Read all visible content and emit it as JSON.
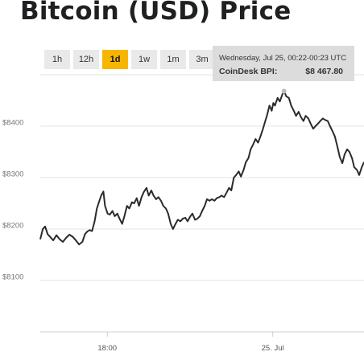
{
  "page": {
    "title": "Bitcoin (USD) Price"
  },
  "range_tabs": [
    {
      "label": "1h",
      "active": false
    },
    {
      "label": "12h",
      "active": false
    },
    {
      "label": "1d",
      "active": true
    },
    {
      "label": "1w",
      "active": false
    },
    {
      "label": "1m",
      "active": false
    },
    {
      "label": "3m",
      "active": false
    }
  ],
  "tooltip": {
    "date": "Wednesday, Jul 25, 00:22-00:23 UTC",
    "label": "CoinDesk BPI:",
    "value": "$8 467.80"
  },
  "colors": {
    "accent": "#f7b500",
    "line": "#2b2b2b",
    "grid": "#e3e3e3",
    "tab_bg": "#e9e9e9"
  },
  "chart_data": {
    "type": "line",
    "ylabel": "",
    "xlabel": "",
    "ylim": [
      8000,
      8500
    ],
    "x_range": [
      0,
      100
    ],
    "y_ticks": [
      {
        "value": 8100,
        "label": "$8100"
      },
      {
        "value": 8200,
        "label": "$8200"
      },
      {
        "value": 8300,
        "label": "$8300"
      },
      {
        "value": 8400,
        "label": "$8400"
      }
    ],
    "x_ticks": [
      {
        "x": 20.7,
        "label": "18:00"
      },
      {
        "x": 71.8,
        "label": "25. Jul"
      }
    ],
    "grid": true,
    "series": [
      {
        "name": "",
        "points": [
          [
            0.0,
            8180
          ],
          [
            0.8,
            8200
          ],
          [
            1.5,
            8205
          ],
          [
            2.3,
            8190
          ],
          [
            3.0,
            8185
          ],
          [
            4.0,
            8178
          ],
          [
            5.0,
            8188
          ],
          [
            6.0,
            8180
          ],
          [
            7.0,
            8175
          ],
          [
            8.0,
            8183
          ],
          [
            9.0,
            8189
          ],
          [
            10.0,
            8185
          ],
          [
            11.0,
            8178
          ],
          [
            12.0,
            8170
          ],
          [
            13.0,
            8175
          ],
          [
            13.8,
            8190
          ],
          [
            14.5,
            8195
          ],
          [
            15.3,
            8198
          ],
          [
            16.0,
            8196
          ],
          [
            16.8,
            8215
          ],
          [
            17.5,
            8240
          ],
          [
            18.0,
            8250
          ],
          [
            18.8,
            8265
          ],
          [
            19.5,
            8273
          ],
          [
            20.0,
            8245
          ],
          [
            20.8,
            8230
          ],
          [
            21.5,
            8228
          ],
          [
            22.3,
            8235
          ],
          [
            23.0,
            8225
          ],
          [
            23.8,
            8230
          ],
          [
            24.5,
            8220
          ],
          [
            25.3,
            8210
          ],
          [
            26.0,
            8225
          ],
          [
            26.8,
            8245
          ],
          [
            27.5,
            8240
          ],
          [
            28.3,
            8252
          ],
          [
            29.0,
            8250
          ],
          [
            29.8,
            8260
          ],
          [
            30.5,
            8245
          ],
          [
            31.3,
            8262
          ],
          [
            32.0,
            8272
          ],
          [
            32.8,
            8280
          ],
          [
            33.5,
            8265
          ],
          [
            34.3,
            8275
          ],
          [
            35.0,
            8265
          ],
          [
            35.8,
            8258
          ],
          [
            36.5,
            8262
          ],
          [
            37.3,
            8255
          ],
          [
            38.0,
            8245
          ],
          [
            38.8,
            8240
          ],
          [
            39.5,
            8230
          ],
          [
            40.3,
            8210
          ],
          [
            41.0,
            8200
          ],
          [
            41.8,
            8210
          ],
          [
            42.5,
            8218
          ],
          [
            43.3,
            8215
          ],
          [
            44.0,
            8220
          ],
          [
            44.8,
            8222
          ],
          [
            45.5,
            8215
          ],
          [
            46.3,
            8224
          ],
          [
            47.0,
            8230
          ],
          [
            47.8,
            8218
          ],
          [
            48.5,
            8220
          ],
          [
            49.3,
            8225
          ],
          [
            50.0,
            8235
          ],
          [
            50.8,
            8245
          ],
          [
            51.5,
            8258
          ],
          [
            52.3,
            8255
          ],
          [
            53.0,
            8258
          ],
          [
            53.8,
            8255
          ],
          [
            54.5,
            8260
          ],
          [
            55.3,
            8262
          ],
          [
            56.0,
            8265
          ],
          [
            56.8,
            8262
          ],
          [
            57.5,
            8270
          ],
          [
            58.3,
            8280
          ],
          [
            59.0,
            8275
          ],
          [
            59.8,
            8300
          ],
          [
            60.5,
            8305
          ],
          [
            61.3,
            8312
          ],
          [
            62.0,
            8302
          ],
          [
            62.8,
            8315
          ],
          [
            63.5,
            8330
          ],
          [
            64.3,
            8338
          ],
          [
            65.0,
            8355
          ],
          [
            65.8,
            8365
          ],
          [
            66.5,
            8375
          ],
          [
            67.3,
            8368
          ],
          [
            68.0,
            8380
          ],
          [
            68.8,
            8395
          ],
          [
            69.5,
            8410
          ],
          [
            70.0,
            8420
          ],
          [
            70.8,
            8440
          ],
          [
            71.5,
            8430
          ],
          [
            72.0,
            8445
          ],
          [
            72.5,
            8440
          ],
          [
            73.3,
            8455
          ],
          [
            74.0,
            8448
          ],
          [
            74.8,
            8462
          ],
          [
            75.3,
            8468
          ],
          [
            76.0,
            8458
          ],
          [
            76.8,
            8455
          ],
          [
            77.5,
            8440
          ],
          [
            78.3,
            8430
          ],
          [
            79.0,
            8420
          ],
          [
            79.8,
            8428
          ],
          [
            80.5,
            8418
          ],
          [
            81.3,
            8410
          ],
          [
            82.0,
            8420
          ],
          [
            82.8,
            8415
          ],
          [
            83.5,
            8405
          ],
          [
            84.3,
            8395
          ],
          [
            85.0,
            8400
          ],
          [
            85.8,
            8405
          ],
          [
            86.5,
            8410
          ],
          [
            87.3,
            8415
          ],
          [
            88.0,
            8412
          ],
          [
            88.8,
            8410
          ],
          [
            89.5,
            8400
          ],
          [
            90.3,
            8390
          ],
          [
            91.0,
            8380
          ],
          [
            91.8,
            8360
          ],
          [
            92.5,
            8340
          ],
          [
            93.3,
            8328
          ],
          [
            94.0,
            8345
          ],
          [
            94.8,
            8355
          ],
          [
            95.5,
            8350
          ],
          [
            96.3,
            8338
          ],
          [
            97.0,
            8320
          ],
          [
            97.8,
            8315
          ],
          [
            98.5,
            8305
          ],
          [
            99.3,
            8320
          ],
          [
            100.0,
            8330
          ]
        ]
      }
    ]
  }
}
